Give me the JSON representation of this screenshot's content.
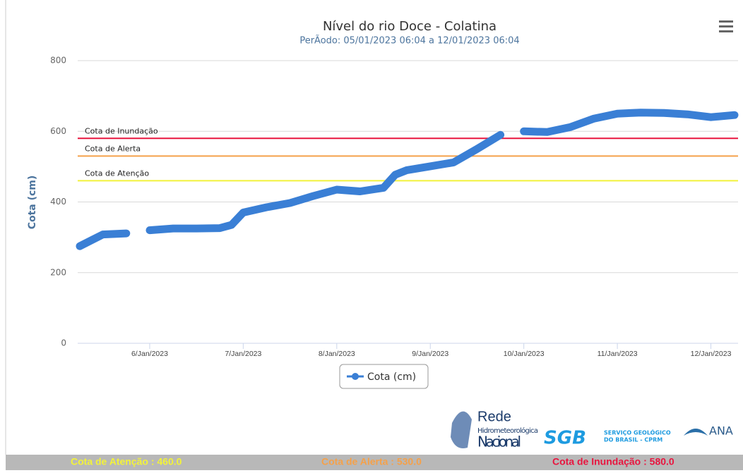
{
  "chart_data": {
    "type": "line",
    "title": "Nível do rio Doce - Colatina",
    "subtitle": "PerÃodo: 05/01/2023 06:04 a 12/01/2023 06:04",
    "y_label": "Cota (cm)",
    "ylim": [
      0,
      800
    ],
    "yticks": [
      0,
      200,
      400,
      600,
      800
    ],
    "xlim": [
      "2023-01-05T06:04",
      "2023-01-12T06:04"
    ],
    "xticks": [
      {
        "value": "2023-01-06T00:00",
        "label": "6/Jan/2023"
      },
      {
        "value": "2023-01-07T00:00",
        "label": "7/Jan/2023"
      },
      {
        "value": "2023-01-08T00:00",
        "label": "8/Jan/2023"
      },
      {
        "value": "2023-01-09T00:00",
        "label": "9/Jan/2023"
      },
      {
        "value": "2023-01-10T00:00",
        "label": "10/Jan/2023"
      },
      {
        "value": "2023-01-11T00:00",
        "label": "11/Jan/2023"
      },
      {
        "value": "2023-01-12T00:00",
        "label": "12/Jan/2023"
      }
    ],
    "grid": true,
    "x": [
      "2023-01-05T06:04",
      "2023-01-05T12:00",
      "2023-01-05T18:00",
      "2023-01-05T21:00",
      "2023-01-06T00:00",
      "2023-01-06T06:00",
      "2023-01-06T12:00",
      "2023-01-06T18:00",
      "2023-01-06T21:00",
      "2023-01-07T00:00",
      "2023-01-07T06:00",
      "2023-01-07T12:00",
      "2023-01-07T18:00",
      "2023-01-08T00:00",
      "2023-01-08T06:00",
      "2023-01-08T12:00",
      "2023-01-08T15:00",
      "2023-01-08T18:00",
      "2023-01-09T00:00",
      "2023-01-09T06:00",
      "2023-01-09T12:00",
      "2023-01-09T18:00",
      "2023-01-09T21:00",
      "2023-01-10T00:00",
      "2023-01-10T06:00",
      "2023-01-10T12:00",
      "2023-01-10T18:00",
      "2023-01-11T00:00",
      "2023-01-11T06:00",
      "2023-01-11T12:00",
      "2023-01-11T18:00",
      "2023-01-12T00:00",
      "2023-01-12T06:04"
    ],
    "series": [
      {
        "name": "Cota (cm)",
        "color": "#3a7fd5",
        "values": [
          275,
          308,
          311,
          null,
          320,
          325,
          325,
          326,
          335,
          370,
          385,
          397,
          417,
          435,
          430,
          440,
          477,
          490,
          501,
          512,
          550,
          590,
          null,
          600,
          598,
          612,
          636,
          650,
          653,
          652,
          648,
          640,
          646
        ]
      }
    ],
    "plot_lines": [
      {
        "label": "Cota de Inundação",
        "value": 580,
        "color": "#e8153f"
      },
      {
        "label": "Cota de Alerta",
        "value": 530,
        "color": "#f5a14a"
      },
      {
        "label": "Cota de Atenção",
        "value": 460,
        "color": "#f2f23a"
      }
    ],
    "footer": [
      {
        "text": "Cota de Atenção : 460.0",
        "color": "#f2f23a"
      },
      {
        "text": "Cota de Alerta : 530.0",
        "color": "#f5a14a"
      },
      {
        "text": "Cota de Inundação : 580.0",
        "color": "#e8153f"
      }
    ],
    "logos": {
      "rede": [
        "Rede",
        "Hidrometeorológica",
        "Nacional"
      ],
      "sgb": [
        "SGB",
        "SERVIÇO GEOLÓGICO",
        "DO BRASIL - CPRM"
      ],
      "ana": "ANA"
    }
  }
}
